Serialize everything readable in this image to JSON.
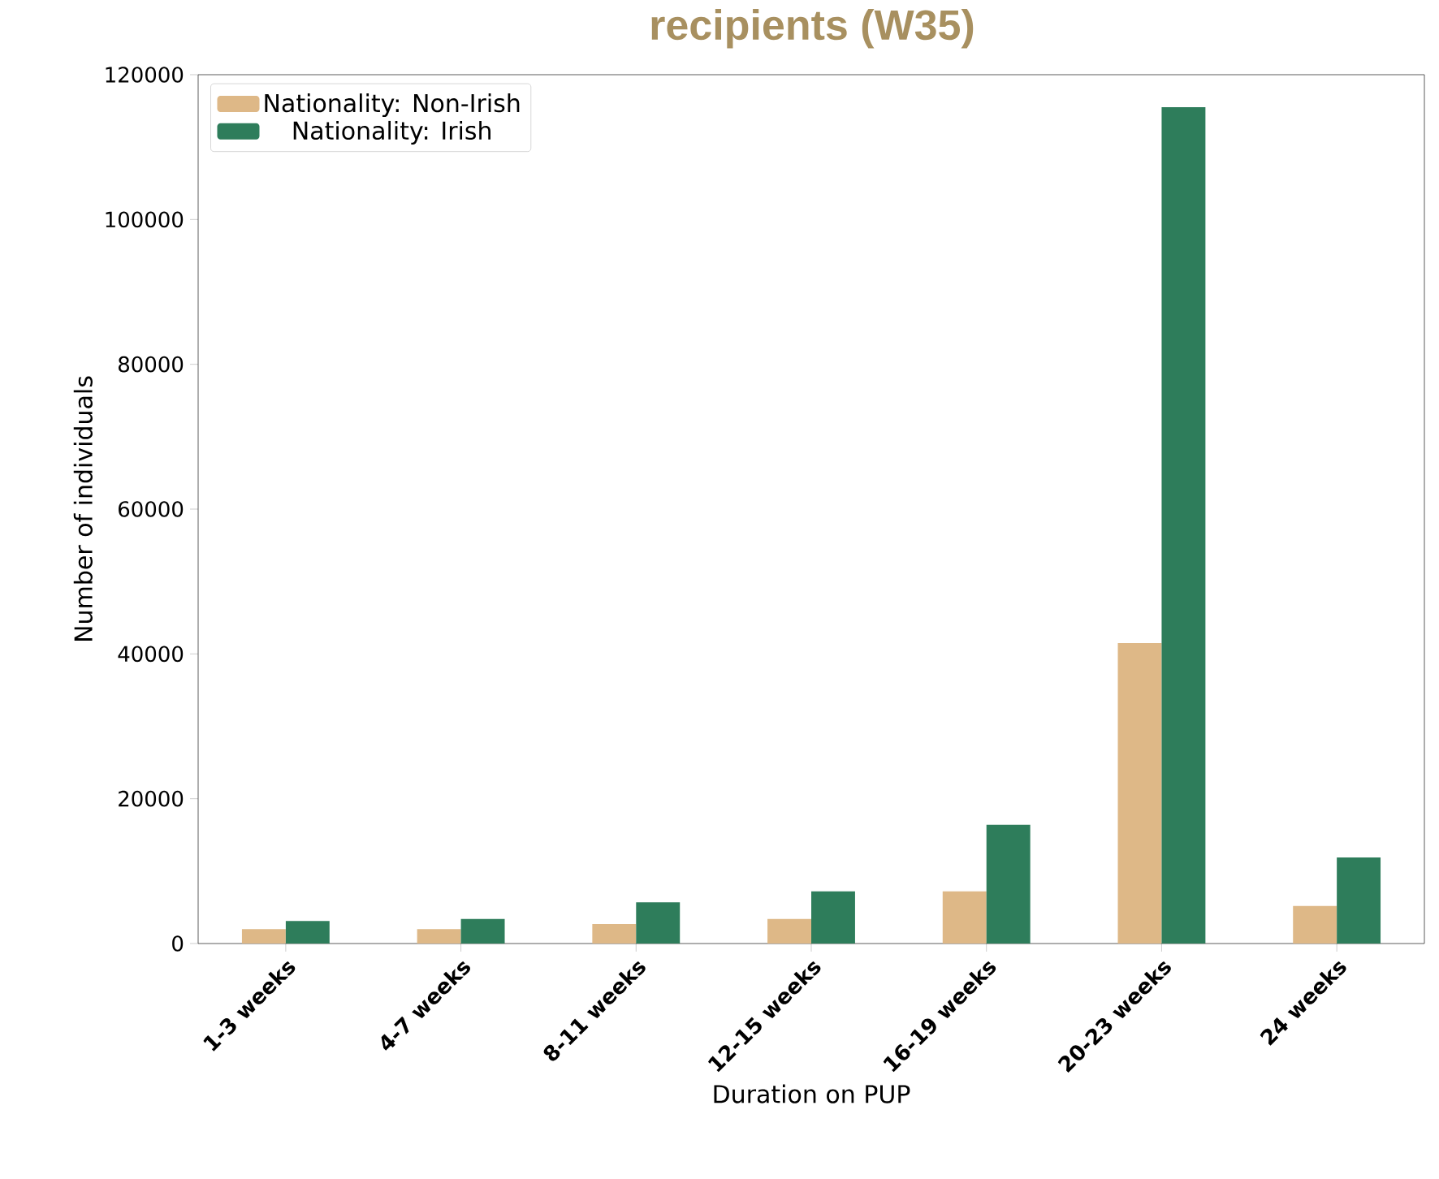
{
  "chart_data": {
    "type": "bar",
    "title": "recipients (W35)",
    "xlabel": "Duration on PUP",
    "ylabel": "Number of individuals",
    "categories": [
      "1-3 weeks",
      "4-7 weeks",
      "8-11 weeks",
      "12-15 weeks",
      "16-19 weeks",
      "20-23 weeks",
      "24 weeks"
    ],
    "series": [
      {
        "name": "Nationality: Non-Irish",
        "color": "#deb887",
        "values": [
          2000,
          2000,
          2700,
          3400,
          7200,
          41500,
          5200
        ]
      },
      {
        "name": "Nationality: Irish",
        "color": "#2e7d5b",
        "values": [
          3100,
          3400,
          5700,
          7200,
          16400,
          115500,
          11900
        ]
      }
    ],
    "ylim": [
      0,
      120000
    ],
    "yticks": [
      0,
      20000,
      40000,
      60000,
      80000,
      100000,
      120000
    ],
    "legend": "top left",
    "grid": false
  }
}
